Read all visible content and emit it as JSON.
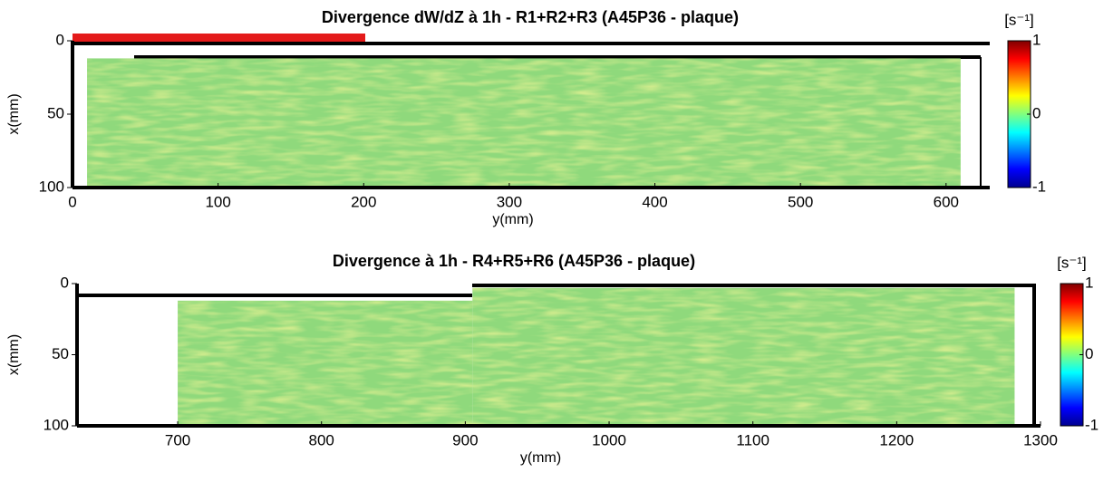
{
  "chart_data": [
    {
      "type": "heatmap",
      "title": "Divergence dW/dZ à 1h - R1+R2+R3 (A45P36 - plaque)",
      "xlabel": "y(mm)",
      "ylabel": "x(mm)",
      "xlim": [
        0,
        630
      ],
      "xticks": [
        0,
        100,
        200,
        300,
        400,
        500,
        600
      ],
      "ylim": [
        0,
        100
      ],
      "yticks": [
        0,
        50,
        100
      ],
      "y_reversed": true,
      "colormap": "jet",
      "clim": [
        -1,
        1
      ],
      "cticks": [
        -1,
        0,
        1
      ],
      "colorbar_label": "[s⁻¹]",
      "field_color": "#8fd97c",
      "fields": [
        {
          "xlim": [
            10,
            610
          ],
          "ylim": [
            12,
            100
          ]
        }
      ]
    },
    {
      "type": "heatmap",
      "title": "Divergence à 1h - R4+R5+R6 (A45P36 - plaque)",
      "xlabel": "y(mm)",
      "ylabel": "x(mm)",
      "xlim": [
        630,
        1300
      ],
      "xticks": [
        700,
        800,
        900,
        1000,
        1100,
        1200,
        1300
      ],
      "ylim": [
        0,
        100
      ],
      "yticks": [
        0,
        50,
        100
      ],
      "y_reversed": true,
      "colormap": "jet",
      "clim": [
        -1,
        1
      ],
      "cticks": [
        -1,
        0,
        1
      ],
      "colorbar_label": "[s⁻¹]",
      "field_color": "#8fd97c",
      "fields": [
        {
          "xlim": [
            700,
            905
          ],
          "ylim": [
            12,
            100
          ]
        },
        {
          "xlim": [
            905,
            1282
          ],
          "ylim": [
            3,
            100
          ]
        }
      ]
    }
  ]
}
